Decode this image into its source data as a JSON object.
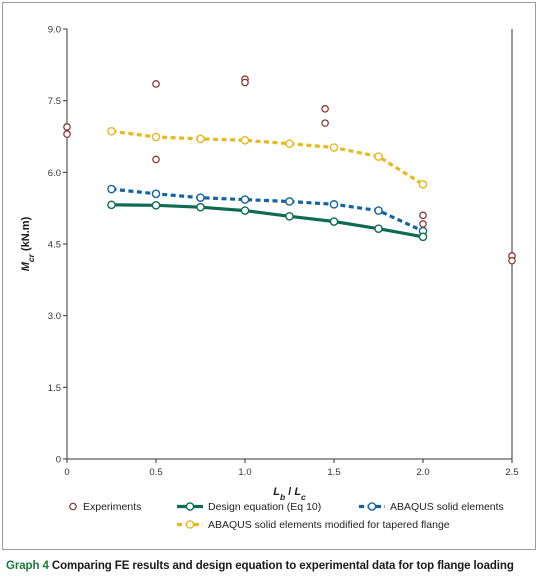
{
  "caption": {
    "label": "Graph 4",
    "text": "Comparing FE results and design equation to experimental data for top flange loading"
  },
  "chart_data": {
    "type": "line",
    "xlabel": "L_b / L_c",
    "ylabel": "M_cr (kN.m)",
    "xlim": [
      0,
      2.5
    ],
    "ylim": [
      0,
      9.0
    ],
    "xticks": [
      "0",
      "0.5",
      "1.0",
      "1.5",
      "2.0",
      "2.5"
    ],
    "yticks": [
      "0",
      "1.5",
      "3.0",
      "4.5",
      "6.0",
      "7.5",
      "9.0"
    ],
    "grid": false,
    "legend_position": "bottom",
    "series": [
      {
        "name": "Experiments",
        "style": "markers",
        "color": "#8b2a2a",
        "x": [
          0,
          0,
          0.5,
          0.5,
          1.0,
          1.0,
          1.45,
          1.45,
          2.0,
          2.0,
          2.5,
          2.5
        ],
        "y": [
          6.95,
          6.8,
          7.85,
          6.27,
          7.95,
          7.88,
          7.33,
          7.03,
          5.1,
          4.92,
          4.25,
          4.15
        ]
      },
      {
        "name": "Design equation (Eq 10)",
        "style": "solid",
        "color": "#0d6b50",
        "x": [
          0.25,
          0.5,
          0.75,
          1.0,
          1.25,
          1.5,
          1.75,
          2.0
        ],
        "y": [
          5.32,
          5.31,
          5.27,
          5.2,
          5.08,
          4.97,
          4.82,
          4.65
        ]
      },
      {
        "name": "ABAQUS solid elements",
        "style": "dotted",
        "color": "#1464a0",
        "x": [
          0.25,
          0.5,
          0.75,
          1.0,
          1.25,
          1.5,
          1.75,
          2.0
        ],
        "y": [
          5.65,
          5.55,
          5.47,
          5.43,
          5.39,
          5.33,
          5.2,
          4.77
        ]
      },
      {
        "name": "ABAQUS solid elements modified for tapered flange",
        "style": "dotted",
        "color": "#e8b820",
        "x": [
          0.25,
          0.5,
          0.75,
          1.0,
          1.25,
          1.5,
          1.75,
          2.0
        ],
        "y": [
          6.86,
          6.74,
          6.7,
          6.67,
          6.6,
          6.52,
          6.33,
          5.75
        ]
      }
    ]
  }
}
